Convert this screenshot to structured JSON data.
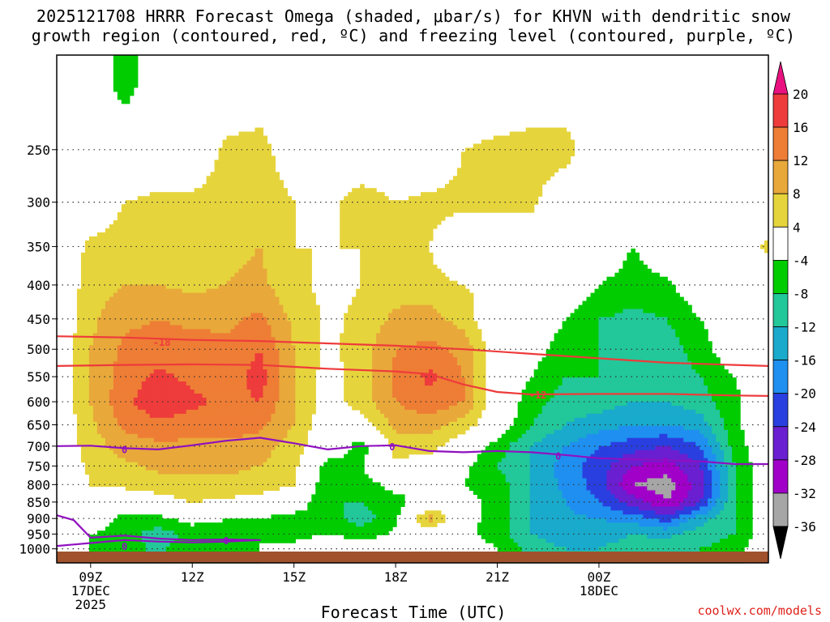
{
  "chart_data": {
    "type": "heatmap",
    "title_line1": "2025121708 HRRR Forecast Omega (shaded, μbar/s) for KHVN with dendritic snow",
    "title_line2": "growth region (contoured, red, ºC) and freezing level (contoured, purple, ºC)",
    "xlabel": "Forecast Time (UTC)",
    "ylabel": "",
    "credit": "coolwx.com/models",
    "y_axis": {
      "scale": "log-pressure",
      "units": "hPa",
      "ylim": [
        1050,
        180
      ],
      "ticks": [
        250,
        300,
        350,
        400,
        450,
        500,
        550,
        600,
        650,
        700,
        750,
        800,
        850,
        900,
        950,
        1000
      ],
      "tick_labels": [
        "250",
        "300",
        "350",
        "400",
        "450",
        "500",
        "550",
        "600",
        "650",
        "700",
        "750",
        "800",
        "850",
        "900",
        "950",
        "1000"
      ]
    },
    "x_axis": {
      "units": "hours since 2025-12-17 08Z",
      "xlim": [
        0,
        21
      ],
      "ticks": [
        {
          "value": 1,
          "labels": [
            "09Z",
            "17DEC",
            "2025"
          ]
        },
        {
          "value": 4,
          "labels": [
            "12Z"
          ]
        },
        {
          "value": 7,
          "labels": [
            "15Z"
          ]
        },
        {
          "value": 10,
          "labels": [
            "18Z"
          ]
        },
        {
          "value": 13,
          "labels": [
            "21Z"
          ]
        },
        {
          "value": 16,
          "labels": [
            "00Z",
            "18DEC"
          ]
        }
      ]
    },
    "colorbar": {
      "label_values": [
        "20",
        "16",
        "12",
        "8",
        "4",
        "-4",
        "-8",
        "-12",
        "-16",
        "-20",
        "-24",
        "-28",
        "-32",
        "-36"
      ],
      "bins": [
        {
          "range": [
            20,
            99
          ],
          "color": "#e8117f"
        },
        {
          "range": [
            16,
            20
          ],
          "color": "#ee3b3b"
        },
        {
          "range": [
            12,
            16
          ],
          "color": "#ee7d35"
        },
        {
          "range": [
            8,
            12
          ],
          "color": "#e8a83a"
        },
        {
          "range": [
            4,
            8
          ],
          "color": "#e6d43c"
        },
        {
          "range": [
            -4,
            4
          ],
          "color": "#ffffff"
        },
        {
          "range": [
            -8,
            -4
          ],
          "color": "#00cc00"
        },
        {
          "range": [
            -12,
            -8
          ],
          "color": "#22c79a"
        },
        {
          "range": [
            -16,
            -12
          ],
          "color": "#19aacc"
        },
        {
          "range": [
            -20,
            -16
          ],
          "color": "#1f8ff0"
        },
        {
          "range": [
            -24,
            -20
          ],
          "color": "#2a3fe0"
        },
        {
          "range": [
            -28,
            -24
          ],
          "color": "#6a1fd0"
        },
        {
          "range": [
            -32,
            -28
          ],
          "color": "#a000c8"
        },
        {
          "range": [
            -36,
            -32
          ],
          "color": "#a6a6a6"
        },
        {
          "range": [
            -99,
            -36
          ],
          "color": "#000000"
        }
      ]
    },
    "omega_field": {
      "units": "μbar/s",
      "times": [
        0,
        1,
        2,
        3,
        4,
        5,
        6,
        7,
        8,
        9,
        10,
        11,
        12,
        13,
        14,
        15,
        16,
        17,
        18,
        19,
        20,
        21
      ],
      "levels": [
        1000,
        950,
        900,
        850,
        800,
        750,
        700,
        650,
        600,
        550,
        500,
        450,
        400,
        350,
        300,
        250,
        200
      ],
      "values": [
        [
          0,
          -4,
          -6,
          -9,
          -5,
          -6,
          -4,
          -3,
          0,
          0,
          0,
          0,
          0,
          -4,
          -10,
          -12,
          -12,
          -10,
          -10,
          -8,
          -6,
          0
        ],
        [
          0,
          -4,
          -6,
          -10,
          -7,
          -6,
          -4,
          -5,
          -4,
          -6,
          -3,
          0,
          -3,
          -6,
          -12,
          -14,
          -14,
          -12,
          -13,
          -10,
          -8,
          0
        ],
        [
          0,
          0,
          -6,
          -5,
          -2,
          -4,
          -4,
          -6,
          -6,
          -10,
          -5,
          10,
          -2,
          -6,
          -12,
          -15,
          -16,
          -18,
          -22,
          -14,
          -8,
          0
        ],
        [
          0,
          0,
          0,
          2,
          4,
          3,
          2,
          0,
          -8,
          -8,
          -6,
          0,
          -2,
          -6,
          -12,
          -16,
          -20,
          -26,
          -32,
          -24,
          -8,
          0
        ],
        [
          0,
          4,
          5,
          6,
          7,
          7,
          6,
          4,
          -8,
          -6,
          -2,
          -4,
          -4,
          -6,
          -12,
          -17,
          -22,
          -32,
          -34,
          -26,
          -8,
          0
        ],
        [
          0,
          5,
          7,
          9,
          9,
          9,
          8,
          5,
          -6,
          -4,
          3,
          0,
          -3,
          -8,
          -12,
          -18,
          -22,
          -28,
          -30,
          -24,
          -8,
          0
        ],
        [
          0,
          6,
          10,
          11,
          11,
          11,
          10,
          6,
          0,
          -6,
          6,
          6,
          0,
          -6,
          -12,
          -16,
          -20,
          -22,
          -24,
          -20,
          -6,
          0
        ],
        [
          0,
          7,
          13,
          15,
          14,
          14,
          13,
          8,
          0,
          2,
          9,
          10,
          6,
          0,
          -8,
          -12,
          -14,
          -16,
          -16,
          -14,
          -5,
          0
        ],
        [
          0,
          8,
          15,
          19,
          17,
          15,
          16,
          8,
          2,
          6,
          12,
          15,
          12,
          0,
          -6,
          -10,
          -10,
          -12,
          -12,
          -10,
          -5,
          0
        ],
        [
          0,
          8,
          14,
          17,
          15,
          13,
          18,
          8,
          2,
          6,
          13,
          17,
          12,
          0,
          -4,
          -8,
          -8,
          -10,
          -10,
          -8,
          -4,
          0
        ],
        [
          0,
          8,
          13,
          14,
          14,
          13,
          16,
          8,
          3,
          6,
          12,
          13,
          11,
          0,
          -2,
          -6,
          -8,
          -10,
          -10,
          -6,
          0,
          0
        ],
        [
          0,
          7,
          11,
          12,
          11,
          11,
          13,
          7,
          3,
          5,
          9,
          10,
          6,
          0,
          0,
          -4,
          -8,
          -9,
          -8,
          -4,
          0,
          0
        ],
        [
          0,
          6,
          8,
          8,
          7,
          8,
          9,
          5,
          3,
          4,
          6,
          5,
          4,
          3,
          0,
          0,
          -4,
          -6,
          -5,
          0,
          3,
          0
        ],
        [
          0,
          5,
          6,
          6,
          6,
          7,
          8,
          4,
          4,
          4,
          5,
          4,
          0,
          4,
          0,
          0,
          0,
          -4,
          0,
          0,
          0,
          5
        ],
        [
          0,
          0,
          4,
          5,
          5,
          6,
          7,
          4,
          3,
          6,
          4,
          5,
          5,
          4,
          5,
          0,
          0,
          0,
          0,
          0,
          0,
          0
        ],
        [
          0,
          0,
          0,
          0,
          0,
          5,
          6,
          0,
          0,
          0,
          0,
          0,
          4,
          5,
          6,
          6,
          0,
          0,
          0,
          0,
          0,
          0
        ],
        [
          0,
          0,
          -6,
          0,
          0,
          0,
          0,
          0,
          0,
          0,
          0,
          0,
          0,
          0,
          0,
          0,
          0,
          0,
          0,
          0,
          0,
          0
        ]
      ]
    },
    "contours": [
      {
        "name": "dgz-top",
        "label": "-18",
        "units": "ºC",
        "color": "#ee3b3b",
        "times": [
          0,
          2,
          3,
          4,
          6,
          8,
          10,
          12,
          14,
          16,
          18,
          20,
          21
        ],
        "pressures": [
          478,
          480,
          482,
          484,
          486,
          490,
          494,
          500,
          508,
          516,
          524,
          528,
          530
        ]
      },
      {
        "name": "dgz-bottom",
        "label": "-12",
        "units": "ºC",
        "color": "#ee3b3b",
        "times": [
          0,
          2,
          4,
          6,
          8,
          10,
          11,
          12,
          13,
          14,
          16,
          18,
          20,
          21
        ],
        "pressures": [
          530,
          528,
          527,
          528,
          535,
          540,
          545,
          565,
          580,
          585,
          584,
          584,
          587,
          588
        ]
      },
      {
        "name": "freezing-level",
        "label": "0",
        "units": "ºC",
        "color": "#9010c0",
        "times": [
          0,
          1,
          2,
          3,
          4,
          5,
          6,
          7,
          8,
          9,
          10,
          11,
          12,
          13,
          14,
          15,
          16,
          17,
          18,
          19,
          20,
          21
        ],
        "pressures": [
          700,
          699,
          705,
          708,
          698,
          687,
          680,
          693,
          708,
          700,
          698,
          712,
          715,
          712,
          715,
          722,
          730,
          733,
          735,
          738,
          745,
          745
        ]
      },
      {
        "name": "freezing-level-near-surface",
        "label": "0",
        "units": "ºC",
        "color": "#9010c0",
        "times": [
          0,
          0.5,
          1,
          2,
          3,
          4,
          5,
          6,
          5,
          4,
          3,
          2,
          1,
          0.5,
          0
        ],
        "pressures": [
          890,
          905,
          962,
          955,
          965,
          970,
          968,
          970,
          975,
          978,
          975,
          970,
          980,
          985,
          990
        ]
      }
    ],
    "contour_labels": [
      {
        "text": "-18",
        "t": 3.1,
        "p": 487,
        "color": "#ee3b3b"
      },
      {
        "text": "-12",
        "t": 14.2,
        "p": 585,
        "color": "#ee3b3b"
      },
      {
        "text": "0",
        "t": 2.0,
        "p": 707,
        "color": "#9010c0"
      },
      {
        "text": "0",
        "t": 9.9,
        "p": 700,
        "color": "#9010c0"
      },
      {
        "text": "0",
        "t": 14.8,
        "p": 723,
        "color": "#9010c0"
      },
      {
        "text": "0",
        "t": 2.0,
        "p": 990,
        "color": "#9010c0"
      },
      {
        "text": "0",
        "t": 5.0,
        "p": 970,
        "color": "#9010c0"
      }
    ],
    "ground_color": "#a0522d"
  }
}
